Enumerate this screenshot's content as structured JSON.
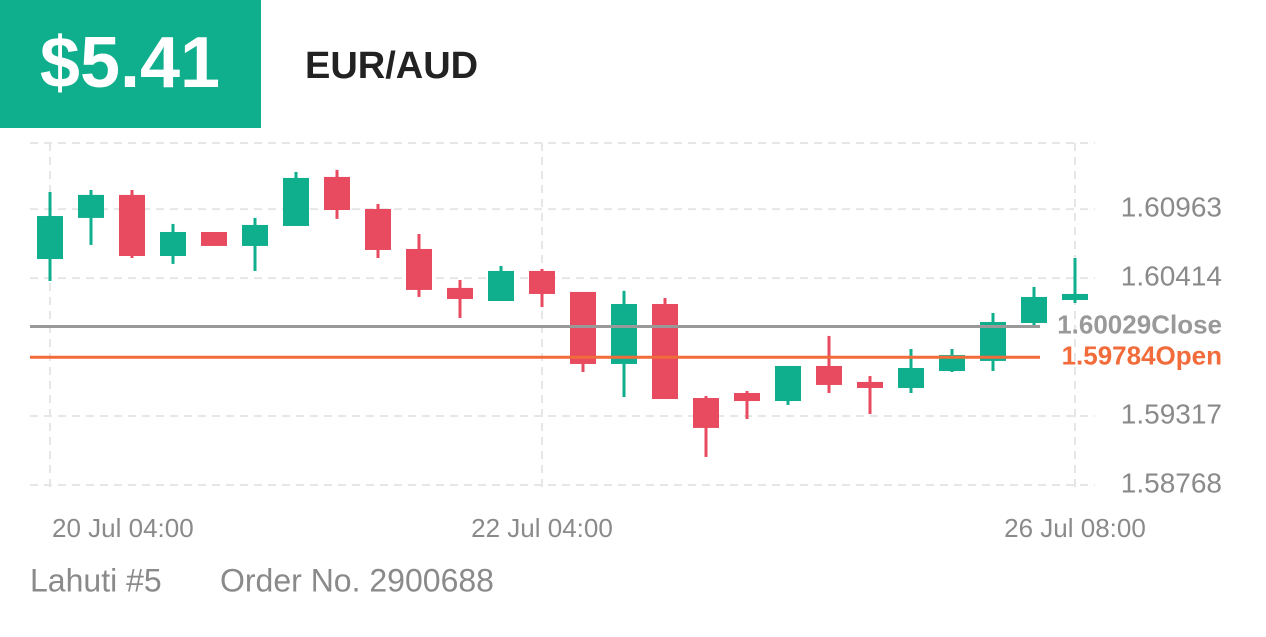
{
  "chart_data": {
    "type": "candlestick",
    "badge": "$5.41",
    "title": "EUR/AUD",
    "footer": [
      "Lahuti #5",
      "Order No. 2900688"
    ],
    "categories": [
      "20 Jul 04:00",
      null,
      null,
      null,
      null,
      null,
      null,
      null,
      null,
      null,
      null,
      null,
      "22 Jul 04:00",
      null,
      null,
      null,
      null,
      null,
      null,
      null,
      null,
      null,
      null,
      null,
      null,
      "26 Jul 08:00"
    ],
    "open": [
      1.60566,
      1.60893,
      1.61076,
      1.6059,
      1.60781,
      1.6067,
      1.60829,
      1.61219,
      1.60964,
      1.60646,
      1.60336,
      1.60232,
      1.60471,
      1.60304,
      1.59731,
      1.60208,
      1.5946,
      1.595,
      1.59436,
      1.59715,
      1.59588,
      1.5954,
      1.59675,
      1.59755,
      1.60057,
      1.6024
    ],
    "high": [
      1.61099,
      1.61115,
      1.61115,
      1.60845,
      1.60781,
      1.60893,
      1.61259,
      1.61275,
      1.61004,
      1.60765,
      1.60399,
      1.60511,
      1.60487,
      1.60304,
      1.60312,
      1.60256,
      1.59476,
      1.59516,
      1.59715,
      1.59954,
      1.59635,
      1.5985,
      1.5985,
      1.60137,
      1.60344,
      1.60574
    ],
    "low": [
      1.60391,
      1.60678,
      1.60574,
      1.60527,
      1.6067,
      1.60471,
      1.60829,
      1.60885,
      1.60574,
      1.60264,
      1.60097,
      1.60232,
      1.60184,
      1.59667,
      1.59468,
      1.59452,
      1.58991,
      1.59293,
      1.59405,
      1.595,
      1.59333,
      1.595,
      1.59667,
      1.59675,
      1.60025,
      1.60216
    ],
    "close": [
      1.60908,
      1.61076,
      1.6059,
      1.60781,
      1.6067,
      1.60837,
      1.61211,
      1.60956,
      1.60638,
      1.6032,
      1.60248,
      1.60471,
      1.60288,
      1.59731,
      1.60208,
      1.59452,
      1.59222,
      1.59436,
      1.59715,
      1.59564,
      1.5954,
      1.59699,
      1.59802,
      1.60065,
      1.60264,
      1.60288
    ],
    "up_color": "#0fae8d",
    "down_color": "#e84a5f",
    "ylim": [
      1.58768,
      1.61489
    ],
    "yticks": [
      1.58768,
      1.59317,
      1.60414,
      1.60963
    ],
    "grid": true,
    "price_lines": [
      {
        "name": "Close",
        "value": 1.60029,
        "color": "#999999"
      },
      {
        "name": "Open",
        "value": 1.59784,
        "color": "#f26b3a"
      }
    ]
  }
}
